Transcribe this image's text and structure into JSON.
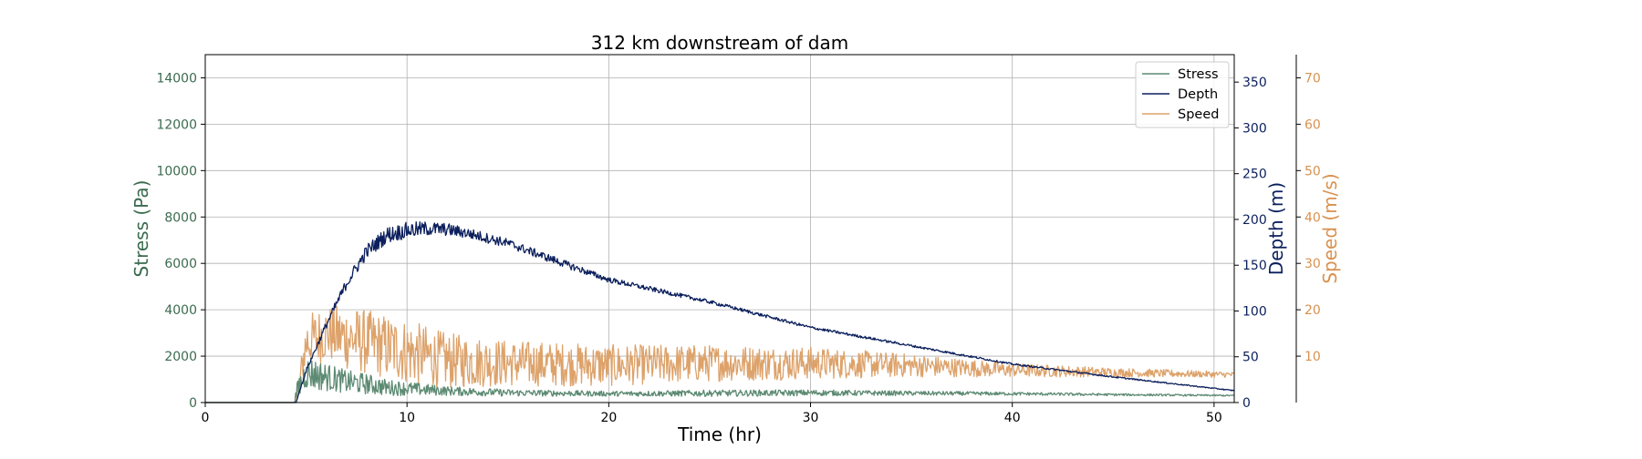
{
  "chart_data": {
    "type": "line",
    "title": "312 km downstream of dam",
    "xlabel": "Time (hr)",
    "xlim": [
      0,
      51
    ],
    "xticks": [
      0,
      10,
      20,
      30,
      40,
      50
    ],
    "grid": true,
    "legend_position": "top-right",
    "axes": [
      {
        "id": "stress",
        "label": "Stress (Pa)",
        "side": "left",
        "color": "#3b6b4f",
        "ylim": [
          0,
          15000
        ],
        "ticks": [
          0,
          2000,
          4000,
          6000,
          8000,
          10000,
          12000,
          14000
        ]
      },
      {
        "id": "depth",
        "label": "Depth (m)",
        "side": "right",
        "color": "#0b1f5c",
        "ylim": [
          0,
          380
        ],
        "ticks": [
          0,
          50,
          100,
          150,
          200,
          250,
          300,
          350
        ]
      },
      {
        "id": "speed",
        "label": "Speed (m/s)",
        "side": "right-outer",
        "color": "#d9914f",
        "ylim": [
          0,
          75
        ],
        "ticks": [
          10,
          20,
          30,
          40,
          50,
          60,
          70
        ]
      }
    ],
    "series": [
      {
        "name": "Stress",
        "axis": "stress",
        "color": "#5c8a72",
        "x": [
          0,
          4.4,
          4.6,
          5,
          5.5,
          6,
          7,
          8,
          9,
          10,
          12,
          15,
          20,
          25,
          30,
          35,
          40,
          45,
          51
        ],
        "y": [
          0,
          0,
          600,
          1300,
          1200,
          1100,
          900,
          800,
          650,
          600,
          500,
          420,
          380,
          400,
          420,
          400,
          380,
          340,
          300
        ],
        "noise": [
          0,
          0,
          500,
          700,
          700,
          600,
          500,
          450,
          350,
          300,
          200,
          150,
          110,
          140,
          130,
          100,
          70,
          50,
          30
        ]
      },
      {
        "name": "Depth",
        "axis": "depth",
        "color": "#0b1f5c",
        "x": [
          0,
          4.5,
          5,
          6,
          7,
          8,
          9,
          10,
          11,
          12,
          13,
          15,
          18,
          20,
          25,
          30,
          35,
          40,
          45,
          51
        ],
        "y": [
          0,
          0,
          35,
          85,
          130,
          165,
          183,
          188,
          190,
          189,
          185,
          174,
          150,
          134,
          110,
          82,
          62,
          42,
          28,
          13
        ],
        "noise": [
          0,
          0,
          2,
          4,
          6,
          8,
          9,
          9,
          8,
          7,
          6,
          5,
          4,
          3,
          2,
          1.5,
          1.2,
          1,
          0.8,
          0.5
        ]
      },
      {
        "name": "Speed",
        "axis": "speed",
        "color": "#dda26a",
        "x": [
          0,
          4.5,
          5,
          6,
          7,
          8,
          10,
          12,
          15,
          20,
          25,
          30,
          35,
          40,
          45,
          51
        ],
        "y": [
          0,
          0,
          13,
          15,
          14,
          13,
          11,
          9,
          8.5,
          8,
          8.5,
          8.5,
          8,
          7,
          6.5,
          6
        ],
        "noise": [
          0,
          0,
          6,
          6,
          7,
          7,
          7,
          6,
          5,
          4.5,
          4,
          3.5,
          2.5,
          1.5,
          1,
          0.6
        ]
      }
    ]
  }
}
